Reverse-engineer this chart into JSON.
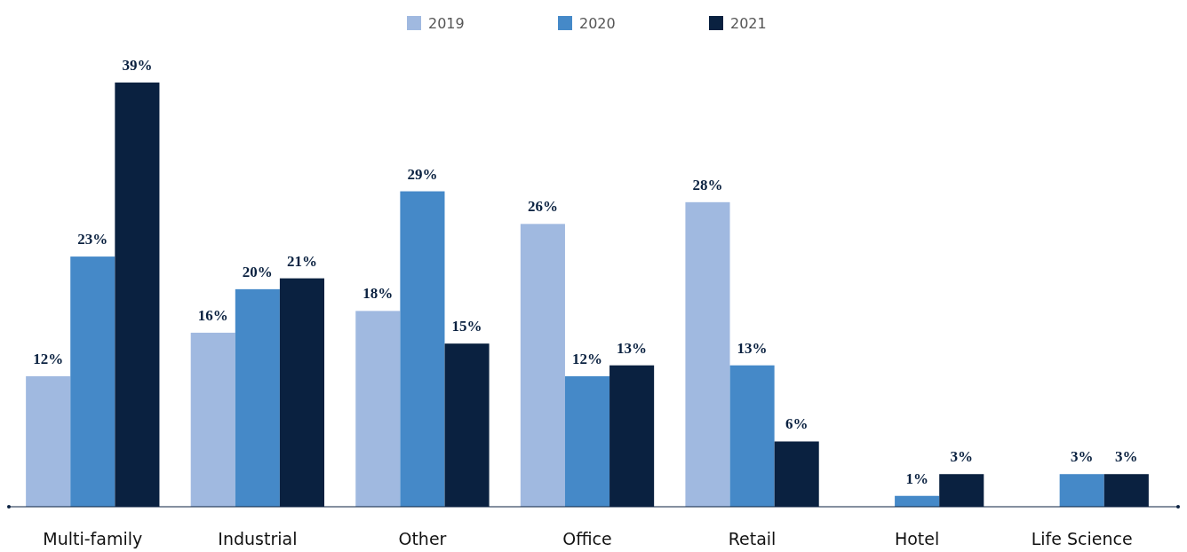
{
  "chart_data": {
    "type": "bar",
    "categories": [
      "Multi-family",
      "Industrial",
      "Other",
      "Office",
      "Retail",
      "Hotel",
      "Life Science"
    ],
    "series": [
      {
        "name": "2019",
        "color": "#a0b9e0",
        "values": [
          12,
          16,
          18,
          26,
          28,
          null,
          null
        ],
        "value_labels": [
          "12%",
          "16%",
          "18%",
          "26%",
          "28%",
          null,
          null
        ]
      },
      {
        "name": "2020",
        "color": "#4589c8",
        "values": [
          23,
          20,
          29,
          12,
          13,
          1,
          3
        ],
        "value_labels": [
          "23%",
          "20%",
          "29%",
          "12%",
          "13%",
          "1%",
          "3%"
        ]
      },
      {
        "name": "2021",
        "color": "#0a2140",
        "values": [
          39,
          21,
          15,
          13,
          6,
          3,
          3
        ],
        "value_labels": [
          "39%",
          "21%",
          "15%",
          "13%",
          "6%",
          "3%",
          "3%"
        ]
      }
    ],
    "legend": "top"
  }
}
